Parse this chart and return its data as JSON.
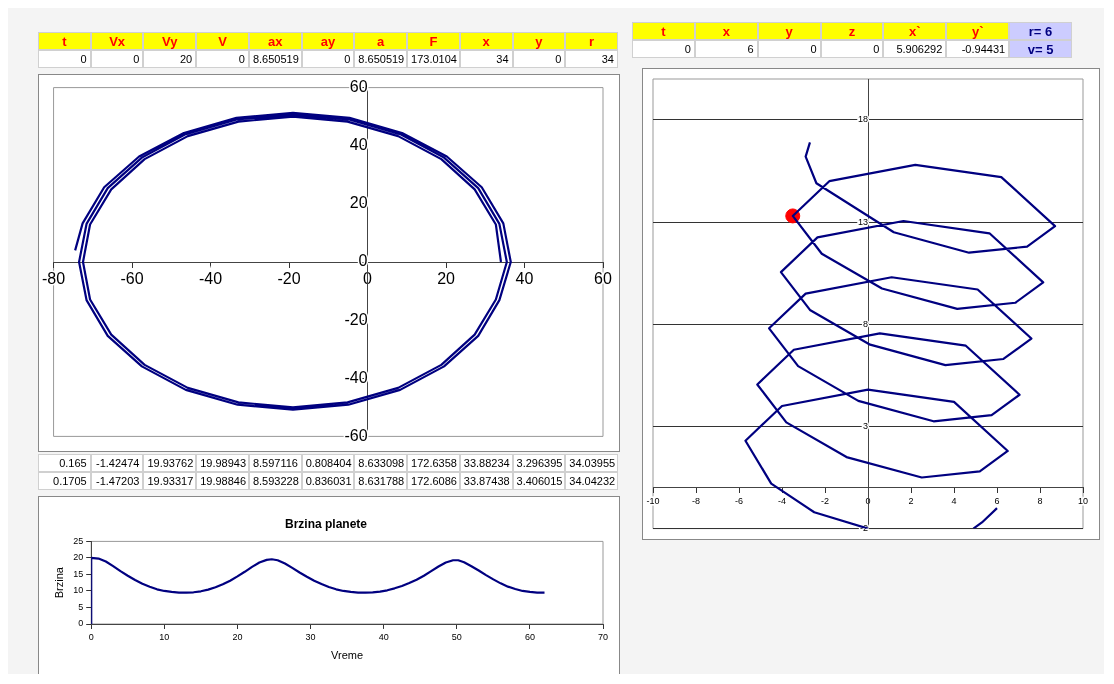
{
  "chart_data": [
    {
      "type": "other",
      "annotations": [
        "t",
        "Vx",
        "Vy",
        "V",
        "ax",
        "ay",
        "a",
        "F",
        "x",
        "y",
        "r",
        "0",
        "0",
        "20",
        "0",
        "8.650519",
        "0",
        "8.650519",
        "173.0104",
        "34",
        "0",
        "34"
      ]
    },
    {
      "type": "line",
      "xlim": [
        -80,
        60
      ],
      "xticks": [
        -80,
        -60,
        -40,
        -20,
        0,
        20,
        40,
        60
      ],
      "ylim": [
        -60,
        60
      ],
      "yticks": [
        -60,
        -40,
        -20,
        0,
        20,
        40,
        60
      ],
      "grid": false,
      "legend": false,
      "series": [
        {
          "color": "#000080",
          "x": [
            34,
            32.7,
            27.3,
            18.8,
            7.8,
            -5.1,
            -19,
            -32.9,
            -45.8,
            -56.8,
            -65.3,
            -70.7,
            -72.5,
            -70.7,
            -65.3,
            -56.8,
            -45.8,
            -32.9,
            -19,
            -5.1,
            7.8,
            18.8,
            27.3,
            32.7,
            35.5,
            33.6,
            28.2,
            19.5,
            8.3,
            -4.9,
            -19,
            -33.1,
            -46.3,
            -57.5,
            -66.2,
            -71.6,
            -73.5,
            -71.6,
            -66.2,
            -57.5,
            -46.3,
            -33.1,
            -19,
            -4.9,
            8.3,
            19.5,
            28.2,
            33.6,
            36.5,
            34.6,
            29.1,
            20.2,
            8.8,
            -4.6,
            -19,
            -33.4,
            -46.8,
            -58.2,
            -67.1,
            -72.6,
            -74.5
          ],
          "values": [
            0,
            12.9,
            25,
            35.4,
            43.3,
            48.3,
            50,
            48.3,
            43.3,
            35.4,
            25,
            12.9,
            0,
            -12.9,
            -25,
            -35.4,
            -43.3,
            -48.3,
            -50,
            -48.3,
            -43.3,
            -35.4,
            -25,
            -12.9,
            0,
            13.1,
            25.4,
            35.9,
            44,
            49.1,
            50.8,
            49.1,
            44,
            35.9,
            25.4,
            13.1,
            0,
            -13.1,
            -25.4,
            -35.9,
            -44,
            -49.1,
            -50.8,
            -49.1,
            -44,
            -35.9,
            -25.4,
            -13.1,
            0,
            13.3,
            25.7,
            36.3,
            44.4,
            49.6,
            51.3,
            49.6,
            44.4,
            36.3,
            25.7,
            13.3,
            4
          ]
        }
      ]
    },
    {
      "type": "other",
      "annotations": [
        "0.165",
        "-1.42474",
        "19.93762",
        "19.98943",
        "8.597116",
        "0.808404",
        "8.633098",
        "172.6358",
        "33.88234",
        "3.296395",
        "34.03955",
        "0.1705",
        "-1.47203",
        "19.93317",
        "19.98846",
        "8.593228",
        "0.836031",
        "8.631788",
        "172.6086",
        "33.87438",
        "3.406015",
        "34.04232"
      ]
    },
    {
      "type": "line",
      "title": "Brzina planete",
      "xlabel": "Vreme",
      "ylabel": "Brzina",
      "xlim": [
        0,
        70
      ],
      "xticks": [
        0,
        10,
        20,
        30,
        40,
        50,
        60,
        70
      ],
      "ylim": [
        0,
        25
      ],
      "yticks": [
        0,
        5,
        10,
        15,
        20,
        25
      ],
      "grid": false,
      "legend": false,
      "series": [
        {
          "color": "#000080",
          "x": [
            0,
            0,
            1,
            2,
            3,
            4,
            5,
            6,
            7,
            8,
            9,
            10,
            11,
            12,
            13,
            14,
            15,
            16,
            17,
            18,
            19,
            20,
            21,
            22,
            23,
            24,
            24.7,
            25.5,
            26.5,
            27.5,
            28.5,
            29.5,
            30.5,
            31.5,
            32.5,
            33.5,
            34.5,
            35.5,
            36.5,
            37.5,
            38.5,
            39.5,
            40.5,
            41.5,
            42.5,
            43.5,
            44.5,
            45.5,
            46.5,
            47.5,
            48.5,
            49.5,
            50.2,
            51,
            52,
            53,
            54,
            55,
            56,
            57,
            58,
            59,
            60,
            61,
            62
          ],
          "values": [
            0,
            20,
            19.8,
            18.9,
            17.5,
            16,
            14.6,
            13.3,
            12.2,
            11.3,
            10.5,
            10,
            9.7,
            9.5,
            9.5,
            9.6,
            9.9,
            10.4,
            11.1,
            12,
            13.1,
            14.4,
            15.8,
            17.3,
            18.6,
            19.4,
            19.6,
            19.3,
            18.3,
            17,
            15.6,
            14.3,
            13.1,
            12.1,
            11.2,
            10.5,
            10,
            9.7,
            9.5,
            9.5,
            9.6,
            9.8,
            10.2,
            10.8,
            11.5,
            12.4,
            13.4,
            14.6,
            16,
            17.4,
            18.6,
            19.3,
            19.3,
            18.7,
            17.5,
            16.2,
            14.8,
            13.5,
            12.3,
            11.3,
            10.6,
            10,
            9.7,
            9.5,
            9.5
          ]
        }
      ]
    },
    {
      "type": "other",
      "annotations": [
        "t",
        "x",
        "y",
        "z",
        "x`",
        "y`",
        "r= 6",
        "0",
        "6",
        "0",
        "0",
        "5.906292",
        "-0.94431",
        "v= 5"
      ]
    },
    {
      "type": "line",
      "xlim": [
        -10,
        10
      ],
      "xticks": [
        -10,
        -8,
        -6,
        -4,
        -2,
        0,
        2,
        4,
        6,
        8,
        10
      ],
      "ylim": [
        -2,
        20
      ],
      "yticks": [
        -2,
        3,
        8,
        13,
        18
      ],
      "grid": "y",
      "legend": false,
      "series": [
        {
          "color": "#000080",
          "x": [
            6,
            5.3,
            4.9,
            2.5,
            0,
            -2.5,
            -4.5,
            -5.7,
            -4,
            0,
            4,
            6.5,
            5.2,
            2.5,
            -1,
            -3.8,
            -5.15,
            -3.45,
            0.55,
            4.55,
            7.05,
            5.75,
            3.05,
            -0.45,
            -3.25,
            -4.6,
            -2.9,
            1.1,
            5.1,
            7.6,
            6.3,
            3.6,
            0.1,
            -2.7,
            -4.05,
            -2.35,
            1.65,
            5.65,
            8.15,
            6.85,
            4.15,
            0.65,
            -2.15,
            -3.5,
            -1.8,
            2.2,
            6.2,
            8.7,
            7.4,
            4.7,
            1.2,
            -2.4,
            -2.9,
            -2.7
          ],
          "values": [
            -1,
            -1.7,
            -2,
            null,
            -2,
            -1.2,
            0.2,
            2.3,
            4,
            4.8,
            4.2,
            1.8,
            0.8,
            0.5,
            1.5,
            3.2,
            5.05,
            6.75,
            7.55,
            6.95,
            4.55,
            3.55,
            3.25,
            4.25,
            5.95,
            7.8,
            9.5,
            10.3,
            9.7,
            7.3,
            6.3,
            6,
            7,
            8.7,
            10.55,
            12.25,
            13.05,
            12.45,
            10.05,
            9.05,
            8.75,
            9.75,
            11.45,
            13.3,
            15,
            15.8,
            15.2,
            12.8,
            11.8,
            11.5,
            12.5,
            14.9,
            16.2,
            16.9
          ]
        },
        {
          "type": "scatter",
          "color": "#ff0000",
          "marker": "circle",
          "x": [
            -3.5
          ],
          "values": [
            13.3
          ]
        }
      ]
    }
  ]
}
